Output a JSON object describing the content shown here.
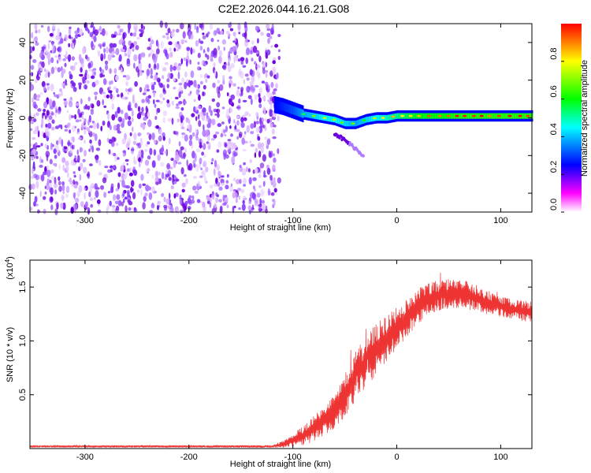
{
  "title": "C2E2.2026.044.16.21.G08",
  "chart_data": [
    {
      "type": "heatmap",
      "name": "spectrogram",
      "xlabel": "Height of straight line (km)",
      "ylabel": "Frequency (Hz)",
      "xlim": [
        -353,
        130
      ],
      "ylim": [
        -50,
        50
      ],
      "xticks": [
        -300,
        -200,
        -100,
        0,
        100
      ],
      "xtick_labels": [
        "-300",
        "-200",
        "-100",
        "0",
        "100"
      ],
      "yticks": [
        -40,
        -20,
        0,
        20,
        40
      ],
      "ytick_labels": [
        "-40",
        "-20",
        "0",
        "20",
        "40"
      ],
      "noise_region": [
        -353,
        -113
      ],
      "signal_track": {
        "x": [
          -118,
          -110,
          -100,
          -90,
          -80,
          -70,
          -60,
          -50,
          -40,
          -30,
          -20,
          -10,
          0,
          10,
          20,
          40,
          60,
          80,
          100,
          130
        ],
        "freq": [
          7,
          6,
          4,
          2,
          1,
          0,
          -1,
          -3,
          -3,
          -1,
          0,
          0,
          1,
          1,
          1,
          1,
          1,
          1,
          1,
          1
        ],
        "amplitude": [
          0.35,
          0.4,
          0.45,
          0.55,
          0.6,
          0.65,
          0.65,
          0.6,
          0.55,
          0.6,
          0.65,
          0.7,
          0.75,
          0.8,
          0.85,
          0.85,
          0.9,
          0.9,
          0.9,
          0.9
        ]
      },
      "secondary_trace": {
        "x": [
          -60,
          -50,
          -40,
          -32
        ],
        "freq": [
          -8,
          -12,
          -16,
          -20
        ]
      },
      "colorbar": {
        "label": "Normalized spectral amplitude",
        "ticks": [
          0.0,
          0.2,
          0.4,
          0.6,
          0.8
        ],
        "tick_labels": [
          "0.0",
          "0.2",
          "0.4",
          "0.6",
          "0.8"
        ],
        "range": [
          0,
          1
        ],
        "colors": [
          "#ffffff",
          "#ff00ff",
          "#0000ff",
          "#00ffff",
          "#00ff00",
          "#ffff00",
          "#ff0000"
        ]
      }
    },
    {
      "type": "line",
      "name": "snr",
      "xlabel": "Height of straight line (km)",
      "ylabel": "SNR (10 * v/v)",
      "y_multiplier": "(x10",
      "y_multiplier_exp": "4",
      "y_multiplier_close": ")",
      "xlim": [
        -353,
        130
      ],
      "ylim": [
        0,
        1.75
      ],
      "xticks": [
        -300,
        -200,
        -100,
        0,
        100
      ],
      "xtick_labels": [
        "-300",
        "-200",
        "-100",
        "0",
        "100"
      ],
      "yticks": [
        0.5,
        1.0,
        1.5
      ],
      "ytick_labels": [
        "0.5",
        "1.0",
        "1.5"
      ],
      "color": "#ee3333",
      "trend": {
        "x": [
          -353,
          -120,
          -110,
          -100,
          -90,
          -80,
          -70,
          -60,
          -50,
          -40,
          -30,
          -20,
          -10,
          0,
          10,
          20,
          30,
          40,
          50,
          60,
          70,
          80,
          90,
          100,
          110,
          120,
          130
        ],
        "y": [
          0.02,
          0.02,
          0.04,
          0.08,
          0.12,
          0.18,
          0.26,
          0.36,
          0.5,
          0.66,
          0.8,
          0.92,
          1.02,
          1.12,
          1.22,
          1.32,
          1.38,
          1.42,
          1.44,
          1.45,
          1.42,
          1.38,
          1.35,
          1.32,
          1.3,
          1.28,
          1.27
        ]
      },
      "noise_amplitude": {
        "x": [
          -353,
          -120,
          -100,
          -80,
          -60,
          -40,
          -20,
          0,
          20,
          40,
          60,
          80,
          100,
          130
        ],
        "y": [
          0.008,
          0.01,
          0.05,
          0.1,
          0.15,
          0.2,
          0.2,
          0.16,
          0.14,
          0.12,
          0.12,
          0.1,
          0.08,
          0.08
        ]
      }
    }
  ]
}
